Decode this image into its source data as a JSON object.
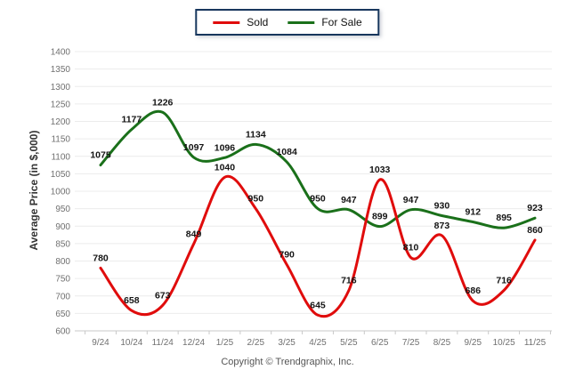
{
  "chart_data": {
    "type": "line",
    "categories": [
      "9/24",
      "10/24",
      "11/24",
      "12/24",
      "1/25",
      "2/25",
      "3/25",
      "4/25",
      "5/25",
      "6/25",
      "7/25",
      "8/25",
      "9/25",
      "10/25",
      "11/25"
    ],
    "series": [
      {
        "name": "Sold",
        "color": "#e00c0c",
        "values": [
          780,
          658,
          673,
          849,
          1040,
          950,
          790,
          645,
          716,
          1033,
          810,
          873,
          686,
          716,
          860
        ]
      },
      {
        "name": "For Sale",
        "color": "#1a701a",
        "values": [
          1075,
          1177,
          1226,
          1097,
          1096,
          1134,
          1084,
          950,
          947,
          899,
          947,
          930,
          912,
          895,
          923
        ]
      }
    ],
    "title": "",
    "xlabel": "",
    "ylabel": "Average Price (in $,000)",
    "ylim": [
      600,
      1400
    ],
    "ytick_step": 50,
    "grid": "horizontal",
    "legend_position": "top-center",
    "smoothing": "spline",
    "data_labels": true
  },
  "footer": {
    "copyright": "Copyright © Trendgraphix, Inc."
  }
}
